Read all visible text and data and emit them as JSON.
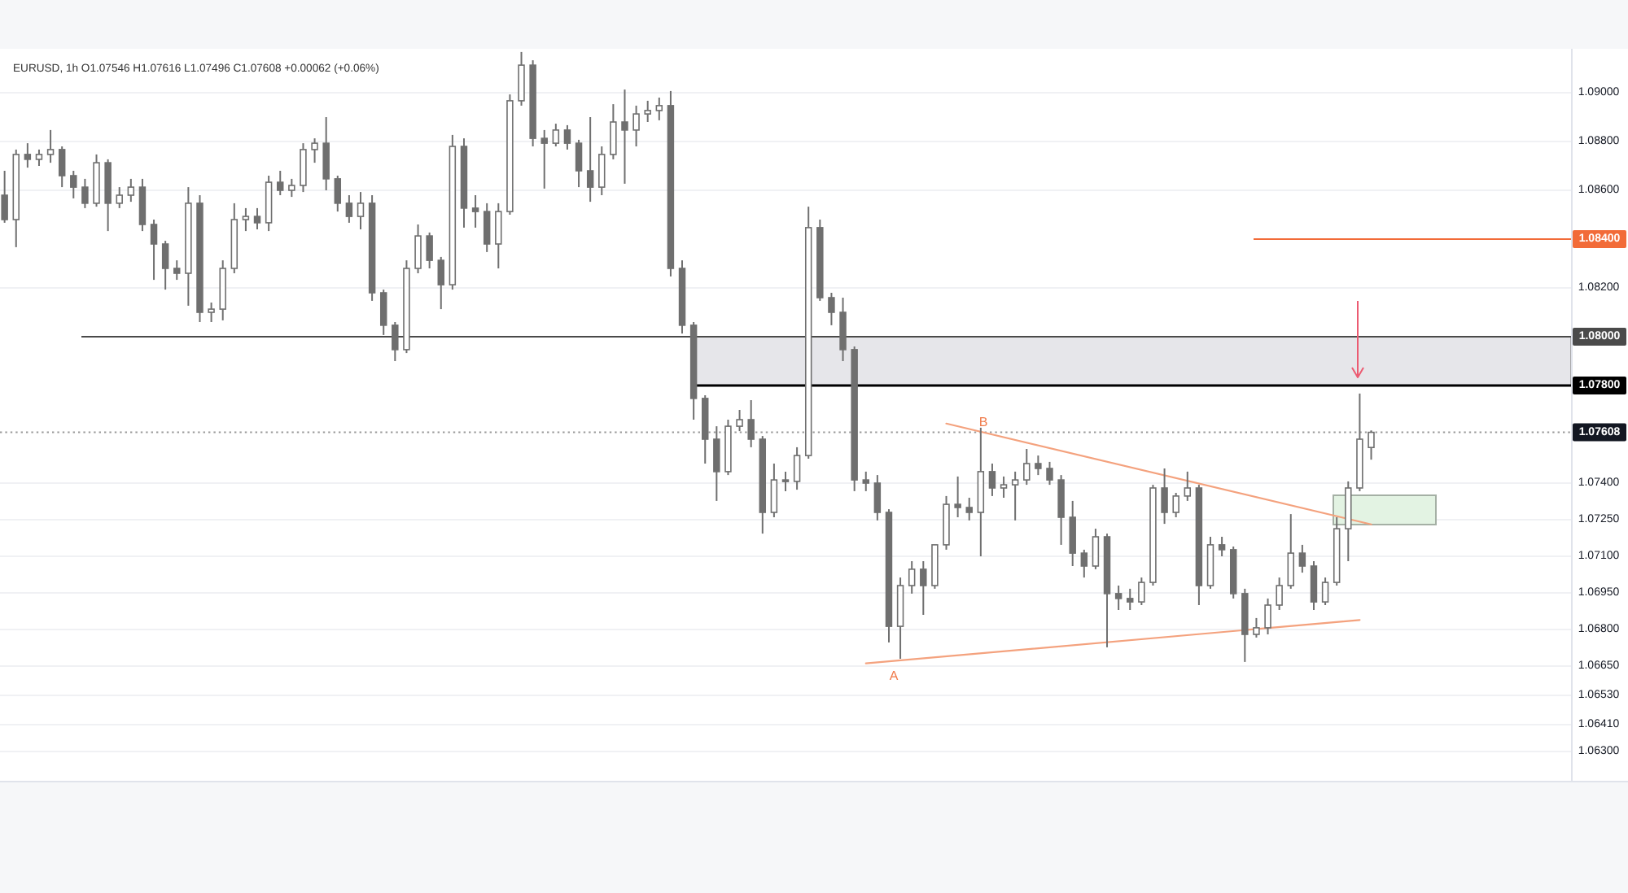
{
  "chart_data": {
    "type": "candlestick",
    "title": "EURUSD, 1h O1.07546 H1.07616 L1.07496 C1.07608 +0.00062 (+0.06%)",
    "categories": [
      null,
      null,
      null,
      null,
      null,
      null,
      null,
      null,
      null,
      null,
      null,
      null,
      null,
      null,
      null,
      null,
      null,
      null,
      null,
      null,
      null,
      null,
      null,
      null,
      null,
      null,
      null,
      null,
      null,
      null,
      null,
      null,
      null,
      null,
      null,
      null,
      null,
      null,
      null,
      null,
      null,
      null,
      null,
      null,
      null,
      null,
      null,
      null,
      null,
      null,
      null,
      null,
      null,
      null,
      null,
      null,
      null,
      null,
      null,
      null,
      null,
      null,
      null,
      null,
      null,
      null,
      null,
      null,
      null,
      null,
      null,
      null,
      null,
      null,
      null,
      null,
      null,
      null,
      null,
      null,
      null,
      null,
      null,
      null,
      null,
      null,
      null,
      null,
      null,
      null,
      null,
      null,
      null,
      null,
      null,
      null,
      null,
      null,
      null,
      null,
      null,
      null,
      null,
      null,
      null,
      null,
      null,
      null,
      null,
      null,
      null,
      null,
      null,
      null,
      null,
      null,
      null,
      null,
      null,
      null,
      null,
      null,
      null,
      null,
      null,
      null,
      null,
      null,
      null,
      null,
      null,
      null,
      null,
      null,
      null,
      null,
      null
    ],
    "ohlc": [
      [
        1.0858,
        1.0868,
        1.08467,
        1.0848
      ],
      [
        1.0848,
        1.08767,
        1.08367,
        1.08747
      ],
      [
        1.08747,
        1.08793,
        1.08693,
        1.08727
      ],
      [
        1.08727,
        1.08767,
        1.087,
        1.08747
      ],
      [
        1.08747,
        1.08847,
        1.08713,
        1.08767
      ],
      [
        1.08767,
        1.0878,
        1.08613,
        1.0866
      ],
      [
        1.0866,
        1.0868,
        1.08567,
        1.08613
      ],
      [
        1.08613,
        1.08647,
        1.08527,
        1.08547
      ],
      [
        1.08547,
        1.08747,
        1.08533,
        1.08713
      ],
      [
        1.08713,
        1.08727,
        1.08433,
        1.08547
      ],
      [
        1.08547,
        1.08613,
        1.08527,
        1.0858
      ],
      [
        1.0858,
        1.08647,
        1.08553,
        1.08613
      ],
      [
        1.08613,
        1.08647,
        1.08433,
        1.0846
      ],
      [
        1.0846,
        1.0848,
        1.08233,
        1.0838
      ],
      [
        1.0838,
        1.08393,
        1.08193,
        1.0828
      ],
      [
        1.0828,
        1.08313,
        1.08233,
        1.0826
      ],
      [
        1.0826,
        1.08613,
        1.08127,
        1.08547
      ],
      [
        1.08547,
        1.0858,
        1.0806,
        1.081
      ],
      [
        1.081,
        1.0814,
        1.0806,
        1.08113
      ],
      [
        1.08113,
        1.08313,
        1.08067,
        1.0828
      ],
      [
        1.0828,
        1.08547,
        1.0826,
        1.0848
      ],
      [
        1.0848,
        1.08527,
        1.08433,
        1.08493
      ],
      [
        1.08493,
        1.08527,
        1.0844,
        1.08467
      ],
      [
        1.08467,
        1.0866,
        1.08433,
        1.08633
      ],
      [
        1.08633,
        1.0868,
        1.0858,
        1.086
      ],
      [
        1.086,
        1.08647,
        1.08573,
        1.0862
      ],
      [
        1.0862,
        1.08793,
        1.08593,
        1.08767
      ],
      [
        1.08767,
        1.08813,
        1.08713,
        1.08793
      ],
      [
        1.08793,
        1.089,
        1.086,
        1.08647
      ],
      [
        1.08647,
        1.0866,
        1.08513,
        1.08547
      ],
      [
        1.08547,
        1.0858,
        1.08467,
        1.08493
      ],
      [
        1.08493,
        1.08593,
        1.0844,
        1.08547
      ],
      [
        1.08547,
        1.0858,
        1.08147,
        1.0818
      ],
      [
        1.0818,
        1.08193,
        1.08007,
        1.08047
      ],
      [
        1.08047,
        1.0806,
        1.079,
        1.07947
      ],
      [
        1.07947,
        1.08313,
        1.07933,
        1.0828
      ],
      [
        1.0828,
        1.0846,
        1.0826,
        1.08413
      ],
      [
        1.08413,
        1.08427,
        1.0828,
        1.08313
      ],
      [
        1.08313,
        1.08327,
        1.08113,
        1.08213
      ],
      [
        1.08213,
        1.08827,
        1.08193,
        1.0878
      ],
      [
        1.0878,
        1.08813,
        1.08447,
        1.08527
      ],
      [
        1.08527,
        1.0858,
        1.08447,
        1.08513
      ],
      [
        1.08513,
        1.08547,
        1.08347,
        1.0838
      ],
      [
        1.0838,
        1.08547,
        1.0828,
        1.08513
      ],
      [
        1.08513,
        1.08993,
        1.085,
        1.08967
      ],
      [
        1.08967,
        1.09167,
        1.08947,
        1.09113
      ],
      [
        1.09113,
        1.09133,
        1.0878,
        1.08813
      ],
      [
        1.08813,
        1.08847,
        1.08607,
        1.08793
      ],
      [
        1.08793,
        1.08873,
        1.0878,
        1.08847
      ],
      [
        1.08847,
        1.08867,
        1.08767,
        1.08793
      ],
      [
        1.08793,
        1.08807,
        1.08613,
        1.0868
      ],
      [
        1.0868,
        1.089,
        1.08553,
        1.08613
      ],
      [
        1.08613,
        1.0878,
        1.0858,
        1.08747
      ],
      [
        1.08747,
        1.08953,
        1.08727,
        1.0888
      ],
      [
        1.0888,
        1.09013,
        1.08627,
        1.08847
      ],
      [
        1.08847,
        1.08947,
        1.0878,
        1.08913
      ],
      [
        1.08913,
        1.08967,
        1.0888,
        1.08927
      ],
      [
        1.08927,
        1.0898,
        1.08887,
        1.08947
      ],
      [
        1.08947,
        1.09007,
        1.08247,
        1.0828
      ],
      [
        1.0828,
        1.08313,
        1.08013,
        1.08047
      ],
      [
        1.08047,
        1.0806,
        1.0766,
        1.07747
      ],
      [
        1.07747,
        1.0776,
        1.0748,
        1.0758
      ],
      [
        1.0758,
        1.07633,
        1.07327,
        1.07447
      ],
      [
        1.07447,
        1.0766,
        1.07433,
        1.07633
      ],
      [
        1.07633,
        1.077,
        1.07613,
        1.0766
      ],
      [
        1.0766,
        1.0774,
        1.07547,
        1.0758
      ],
      [
        1.0758,
        1.07593,
        1.07193,
        1.0728
      ],
      [
        1.0728,
        1.0748,
        1.0726,
        1.07413
      ],
      [
        1.07413,
        1.07447,
        1.07367,
        1.07407
      ],
      [
        1.07407,
        1.07547,
        1.07373,
        1.07513
      ],
      [
        1.07513,
        1.08533,
        1.075,
        1.08447
      ],
      [
        1.08447,
        1.0848,
        1.08147,
        1.0816
      ],
      [
        1.0816,
        1.0818,
        1.08047,
        1.081
      ],
      [
        1.081,
        1.0816,
        1.079,
        1.07947
      ],
      [
        1.07947,
        1.0796,
        1.07367,
        1.07413
      ],
      [
        1.07413,
        1.07447,
        1.07367,
        1.074
      ],
      [
        1.074,
        1.07433,
        1.07247,
        1.0728
      ],
      [
        1.0728,
        1.07293,
        1.06747,
        1.06813
      ],
      [
        1.06813,
        1.07013,
        1.0668,
        1.0698
      ],
      [
        1.0698,
        1.0708,
        1.06947,
        1.07047
      ],
      [
        1.07047,
        1.0708,
        1.0686,
        1.0698
      ],
      [
        1.0698,
        1.07147,
        1.06967,
        1.07147
      ],
      [
        1.07147,
        1.07347,
        1.07127,
        1.07313
      ],
      [
        1.07313,
        1.07427,
        1.0726,
        1.073
      ],
      [
        1.073,
        1.0734,
        1.07247,
        1.0728
      ],
      [
        1.0728,
        1.07627,
        1.071,
        1.07447
      ],
      [
        1.07447,
        1.0748,
        1.07347,
        1.0738
      ],
      [
        1.0738,
        1.07427,
        1.0734,
        1.07393
      ],
      [
        1.07393,
        1.07447,
        1.07247,
        1.07413
      ],
      [
        1.07413,
        1.0754,
        1.07393,
        1.0748
      ],
      [
        1.0748,
        1.07513,
        1.07433,
        1.0746
      ],
      [
        1.0746,
        1.07487,
        1.07393,
        1.07413
      ],
      [
        1.07413,
        1.07433,
        1.07147,
        1.0726
      ],
      [
        1.0726,
        1.07327,
        1.0706,
        1.07113
      ],
      [
        1.07113,
        1.07127,
        1.07013,
        1.0706
      ],
      [
        1.0706,
        1.07213,
        1.07047,
        1.0718
      ],
      [
        1.0718,
        1.07193,
        1.06727,
        1.06947
      ],
      [
        1.06947,
        1.0698,
        1.0688,
        1.06927
      ],
      [
        1.06927,
        1.06967,
        1.0688,
        1.06913
      ],
      [
        1.06913,
        1.07013,
        1.069,
        1.06993
      ],
      [
        1.06993,
        1.07393,
        1.0698,
        1.0738
      ],
      [
        1.0738,
        1.0746,
        1.07233,
        1.0728
      ],
      [
        1.0728,
        1.0736,
        1.0726,
        1.07347
      ],
      [
        1.07347,
        1.07447,
        1.07327,
        1.0738
      ],
      [
        1.0738,
        1.07393,
        1.069,
        1.0698
      ],
      [
        1.0698,
        1.0718,
        1.06967,
        1.07147
      ],
      [
        1.07147,
        1.0718,
        1.071,
        1.07127
      ],
      [
        1.07127,
        1.0714,
        1.06927,
        1.06947
      ],
      [
        1.06947,
        1.06967,
        1.06667,
        1.0678
      ],
      [
        1.0678,
        1.06847,
        1.06767,
        1.06807
      ],
      [
        1.06807,
        1.06927,
        1.0678,
        1.069
      ],
      [
        1.069,
        1.07013,
        1.0688,
        1.0698
      ],
      [
        1.0698,
        1.07273,
        1.06967,
        1.07113
      ],
      [
        1.07113,
        1.07147,
        1.07033,
        1.0706
      ],
      [
        1.0706,
        1.0708,
        1.0688,
        1.06913
      ],
      [
        1.06913,
        1.07013,
        1.069,
        1.06993
      ],
      [
        1.06993,
        1.0726,
        1.0698,
        1.07213
      ],
      [
        1.07213,
        1.07407,
        1.0708,
        1.0738
      ],
      [
        1.0738,
        1.07767,
        1.07367,
        1.0758
      ],
      [
        1.07546,
        1.07616,
        1.07496,
        1.07608
      ],
      null,
      null,
      null,
      null,
      null,
      null,
      null,
      null,
      null,
      null,
      null,
      null,
      null,
      null,
      null,
      null,
      null
    ],
    "color": "#6f6f6f",
    "series": [
      {
        "type": "line",
        "color": "#f4a27e",
        "values": [
          null,
          null,
          null,
          null,
          null,
          null,
          null,
          null,
          null,
          null,
          null,
          null,
          null,
          null,
          null,
          null,
          null,
          null,
          null,
          null,
          null,
          null,
          null,
          null,
          null,
          null,
          null,
          null,
          null,
          null,
          null,
          null,
          null,
          null,
          null,
          null,
          null,
          null,
          null,
          null,
          null,
          null,
          null,
          null,
          null,
          null,
          null,
          null,
          null,
          null,
          null,
          null,
          null,
          null,
          null,
          null,
          null,
          null,
          null,
          null,
          null,
          null,
          null,
          null,
          null,
          null,
          null,
          null,
          null,
          null,
          null,
          null,
          null,
          null,
          null,
          null,
          null,
          null,
          null,
          null,
          null,
          null,
          1.07644,
          null,
          null,
          null,
          null,
          null,
          null,
          null,
          null,
          null,
          null,
          null,
          null,
          null,
          null,
          null,
          null,
          null,
          null,
          null,
          null,
          null,
          null,
          null,
          null,
          null,
          null,
          null,
          null,
          null,
          null,
          null,
          null,
          null,
          null,
          null,
          null,
          1.07231,
          null,
          null,
          null,
          null,
          null,
          null,
          null,
          null,
          null,
          null,
          null,
          null,
          null,
          null,
          null,
          null,
          null
        ]
      },
      {
        "type": "line",
        "color": "#f4a27e",
        "values": [
          null,
          null,
          null,
          null,
          null,
          null,
          null,
          null,
          null,
          null,
          null,
          null,
          null,
          null,
          null,
          null,
          null,
          null,
          null,
          null,
          null,
          null,
          null,
          null,
          null,
          null,
          null,
          null,
          null,
          null,
          null,
          null,
          null,
          null,
          null,
          null,
          null,
          null,
          null,
          null,
          null,
          null,
          null,
          null,
          null,
          null,
          null,
          null,
          null,
          null,
          null,
          null,
          null,
          null,
          null,
          null,
          null,
          null,
          null,
          null,
          null,
          null,
          null,
          null,
          null,
          null,
          null,
          null,
          null,
          null,
          null,
          null,
          null,
          null,
          null,
          1.06661,
          null,
          null,
          null,
          null,
          null,
          null,
          null,
          null,
          null,
          null,
          null,
          null,
          null,
          null,
          null,
          null,
          null,
          null,
          null,
          null,
          null,
          null,
          null,
          null,
          null,
          null,
          null,
          null,
          null,
          null,
          null,
          null,
          null,
          null,
          null,
          null,
          null,
          null,
          null,
          null,
          null,
          null,
          1.06839,
          null,
          null,
          null,
          null,
          null,
          null,
          null,
          null,
          null,
          null,
          null,
          null,
          null,
          null,
          null,
          null,
          null,
          null
        ]
      }
    ],
    "ylim": [
      1.0618,
      1.0918
    ],
    "yticks": [
      {
        "value": 1.09,
        "label": "1.09000"
      },
      {
        "value": 1.088,
        "label": "1.08800"
      },
      {
        "value": 1.086,
        "label": "1.08600"
      },
      {
        "value": 1.082,
        "label": "1.08200"
      },
      {
        "value": 1.074,
        "label": "1.07400"
      },
      {
        "value": 1.0725,
        "label": "1.07250"
      },
      {
        "value": 1.071,
        "label": "1.07100"
      },
      {
        "value": 1.0695,
        "label": "1.06950"
      },
      {
        "value": 1.068,
        "label": "1.06800"
      },
      {
        "value": 1.0665,
        "label": "1.06650"
      },
      {
        "value": 1.0653,
        "label": "1.06530"
      },
      {
        "value": 1.0641,
        "label": "1.06410"
      },
      {
        "value": 1.063,
        "label": "1.06300"
      }
    ],
    "grid": "y",
    "tick_labels": "y",
    "ref_lines": [
      {
        "axis": "y",
        "value": 1.084,
        "label": "1.08400",
        "color": "#f26b38"
      },
      {
        "axis": "y",
        "value": 1.08,
        "label": "1.08000",
        "color": "#4a4a4a"
      },
      {
        "axis": "y",
        "value": 1.078,
        "label": "1.07800",
        "color": "#000000"
      },
      {
        "axis": "y",
        "value": 1.07608,
        "label": "1.07608",
        "color": "#9a9a9a",
        "line_style": "dotted"
      }
    ],
    "bands": [
      {
        "axis": "y",
        "from": 1.078,
        "to": 1.08,
        "color": "#e6e6ea"
      },
      {
        "axis": "y",
        "from": 1.0723,
        "to": 1.0735,
        "color": "#e3f3e3"
      }
    ],
    "annotations": [
      "A",
      "B"
    ]
  }
}
